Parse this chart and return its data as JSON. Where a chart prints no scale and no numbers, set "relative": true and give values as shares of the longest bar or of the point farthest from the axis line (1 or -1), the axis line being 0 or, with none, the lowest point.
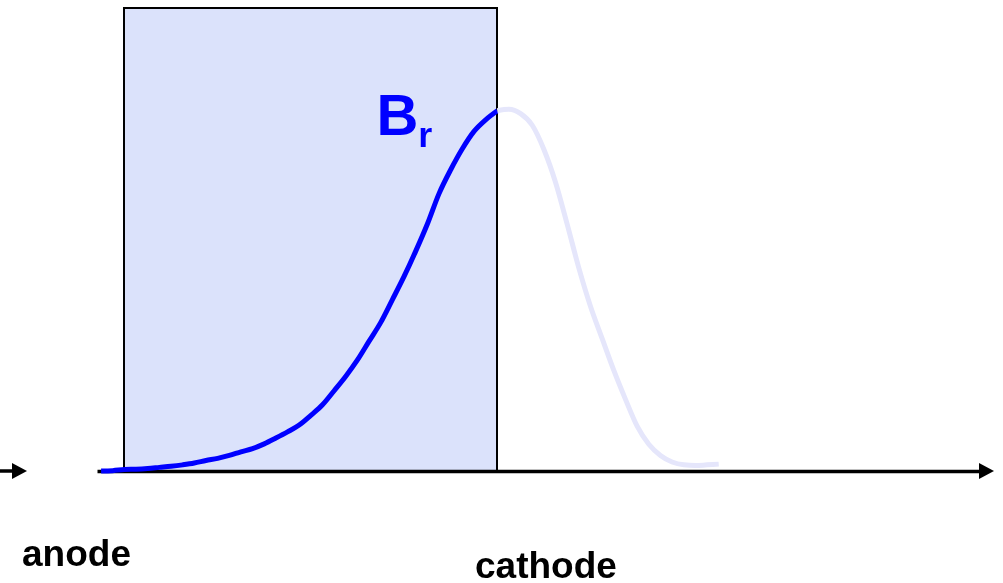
{
  "chart_data": {
    "type": "line",
    "relative": true,
    "categories": [
      null,
      null,
      null,
      null,
      null,
      null,
      null,
      null,
      null,
      null,
      null,
      null,
      null,
      null,
      null,
      null,
      null,
      null,
      null,
      null,
      null,
      null,
      null,
      null,
      null,
      null,
      null,
      null,
      null,
      null,
      null,
      null,
      null,
      null,
      null,
      null,
      null,
      null,
      null,
      null,
      null,
      null,
      null,
      null,
      null,
      null,
      null,
      null,
      null,
      null,
      null,
      null,
      null,
      null,
      null,
      null,
      null,
      null,
      null,
      null,
      null,
      null,
      null,
      null,
      null,
      null,
      null,
      null,
      null,
      null,
      null,
      null,
      null,
      null,
      null,
      null
    ],
    "series": [
      {
        "name": "B$_{r}$",
        "color": "#0000ff",
        "values": [
          0,
          0.001,
          0.004,
          0.005,
          0.007,
          0.01,
          0.013,
          0.017,
          0.022,
          0.029,
          0.035,
          0.043,
          0.053,
          0.062,
          0.075,
          0.091,
          0.108,
          0.127,
          0.154,
          0.183,
          0.222,
          0.262,
          0.307,
          0.359,
          0.411,
          0.474,
          0.538,
          0.608,
          0.683,
          0.767,
          0.833,
          0.891,
          0.939,
          0.971,
          0.996,
          null,
          null,
          null,
          null,
          null,
          null,
          null,
          null,
          null,
          null,
          null,
          null,
          null,
          null,
          null,
          null,
          null,
          null,
          null,
          null,
          null,
          null,
          null,
          null,
          null,
          null,
          null,
          null,
          null,
          null,
          null,
          null,
          null,
          null,
          null,
          null,
          null,
          null,
          null,
          null,
          null
        ]
      },
      {
        "color": "#e5e6fb",
        "values": [
          null,
          null,
          null,
          null,
          null,
          null,
          null,
          null,
          null,
          null,
          null,
          null,
          null,
          null,
          null,
          null,
          null,
          null,
          null,
          null,
          null,
          null,
          null,
          null,
          null,
          null,
          null,
          null,
          null,
          null,
          null,
          null,
          null,
          null,
          0.996,
          1,
          0.988,
          0.956,
          0.889,
          0.798,
          0.682,
          0.561,
          0.455,
          0.366,
          0.278,
          0.198,
          0.124,
          0.074,
          0.043,
          0.025,
          0.017,
          0.015,
          0.017,
          0.019,
          null,
          null,
          null,
          null,
          null,
          null,
          null,
          null,
          null,
          null,
          null,
          null,
          null,
          null,
          null,
          null,
          null,
          null,
          null,
          null,
          null,
          null
        ]
      }
    ],
    "annotations": [
      "anode",
      "cathode"
    ]
  }
}
